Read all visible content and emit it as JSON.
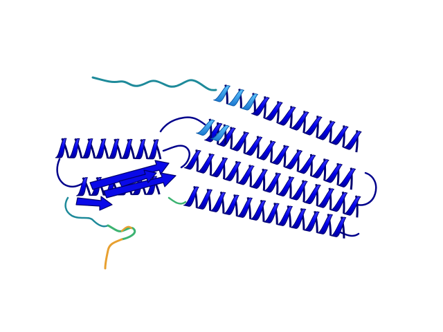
{
  "scene": {
    "subject": "protein-ribbon-structure",
    "background": "#ffffff",
    "colors": {
      "very_high": "#0000ff",
      "very_high_dark": "#00008b",
      "confident": "#1aa0e6",
      "low": "#1e9a9a",
      "low_green": "#3cb371",
      "very_low": "#f0a030",
      "coil": "#000080"
    }
  }
}
